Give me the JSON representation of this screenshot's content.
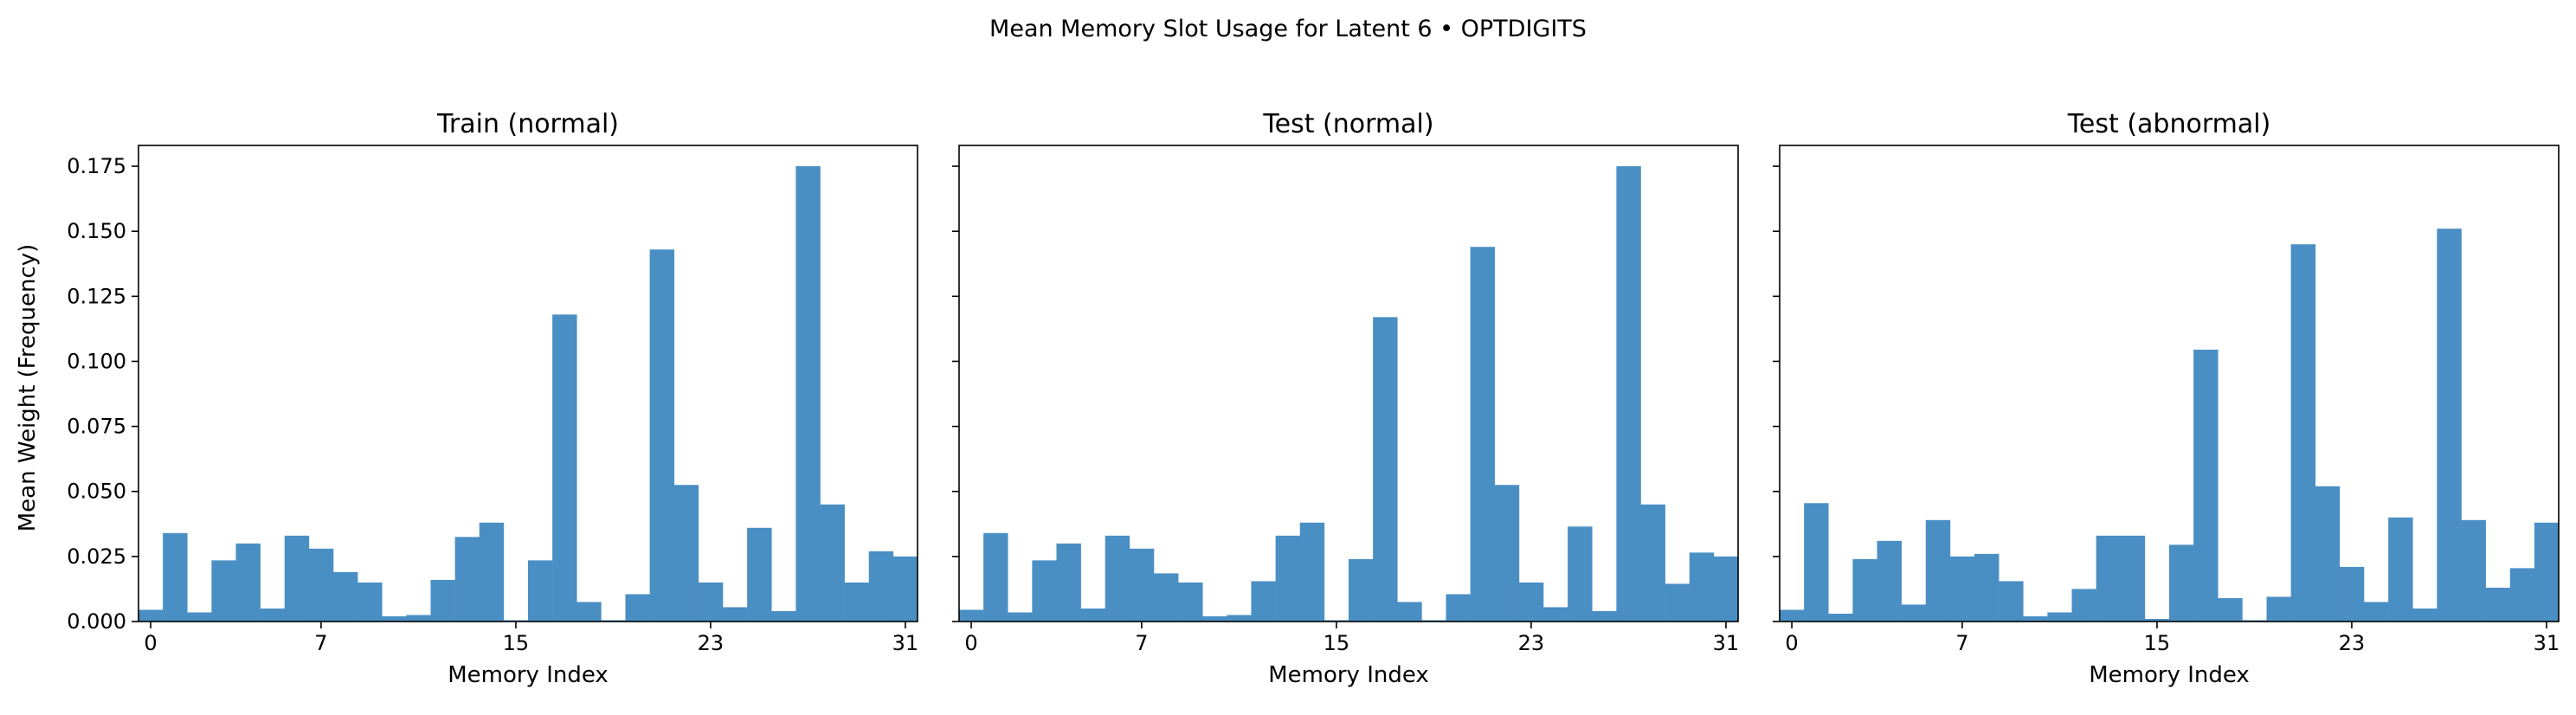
{
  "figure_title": "Mean Memory Slot Usage for Latent 6 • OPTDIGITS",
  "bar_color": "#4a8fc4",
  "chart_data": [
    {
      "type": "bar",
      "title": "Train (normal)",
      "xlabel": "Memory Index",
      "ylabel": "Mean Weight (Frequency)",
      "xticks": [
        0,
        7,
        15,
        23,
        31
      ],
      "yticks": [
        "0.000",
        "0.025",
        "0.050",
        "0.075",
        "0.100",
        "0.125",
        "0.150",
        "0.175"
      ],
      "ylim": [
        0,
        0.183
      ],
      "values": [
        0.0045,
        0.034,
        0.0035,
        0.0235,
        0.03,
        0.005,
        0.033,
        0.028,
        0.019,
        0.015,
        0.002,
        0.0025,
        0.016,
        0.0325,
        0.038,
        0.0005,
        0.0235,
        0.118,
        0.0075,
        0.0005,
        0.0105,
        0.143,
        0.0525,
        0.015,
        0.0055,
        0.036,
        0.004,
        0.175,
        0.045,
        0.015,
        0.027,
        0.025
      ]
    },
    {
      "type": "bar",
      "title": "Test (normal)",
      "xlabel": "Memory Index",
      "ylabel": "",
      "xticks": [
        0,
        7,
        15,
        23,
        31
      ],
      "yticks": [],
      "ylim": [
        0,
        0.183
      ],
      "values": [
        0.0045,
        0.034,
        0.0035,
        0.0235,
        0.03,
        0.005,
        0.033,
        0.028,
        0.0185,
        0.015,
        0.002,
        0.0025,
        0.0155,
        0.033,
        0.038,
        0.0005,
        0.024,
        0.117,
        0.0075,
        0.0005,
        0.0105,
        0.144,
        0.0525,
        0.015,
        0.0055,
        0.0365,
        0.004,
        0.175,
        0.045,
        0.0145,
        0.0265,
        0.025
      ]
    },
    {
      "type": "bar",
      "title": "Test (abnormal)",
      "xlabel": "Memory Index",
      "ylabel": "",
      "xticks": [
        0,
        7,
        15,
        23,
        31
      ],
      "yticks": [],
      "ylim": [
        0,
        0.183
      ],
      "values": [
        0.0045,
        0.0455,
        0.003,
        0.024,
        0.031,
        0.0065,
        0.039,
        0.025,
        0.026,
        0.0155,
        0.002,
        0.0035,
        0.0125,
        0.033,
        0.033,
        0.001,
        0.0295,
        0.1045,
        0.009,
        0.0005,
        0.0095,
        0.145,
        0.052,
        0.021,
        0.0075,
        0.04,
        0.005,
        0.151,
        0.039,
        0.013,
        0.0205,
        0.038
      ]
    }
  ]
}
